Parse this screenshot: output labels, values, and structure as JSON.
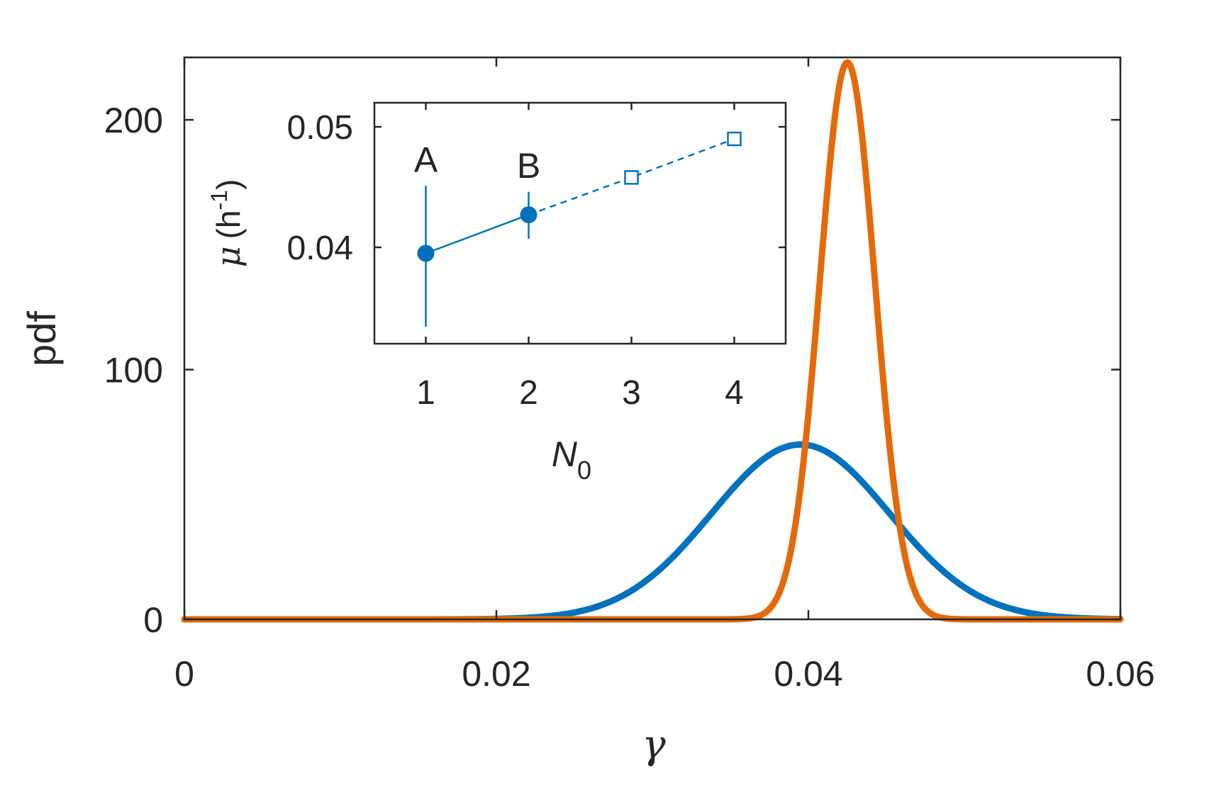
{
  "colors": {
    "blue": "#0072BD",
    "orange": "#E36A0A",
    "axis": "#262626"
  },
  "chart_data": [
    {
      "type": "line",
      "xlabel": "γ",
      "ylabel": "pdf",
      "xlim": [
        0,
        0.06
      ],
      "ylim": [
        0,
        225
      ],
      "xticks": [
        0,
        0.02,
        0.04,
        0.06
      ],
      "xtick_labels": [
        "0",
        "0.02",
        "0.04",
        "0.06"
      ],
      "yticks": [
        0,
        100,
        200
      ],
      "ytick_labels": [
        "0",
        "100",
        "200"
      ],
      "grid": false,
      "series": [
        {
          "color": "#0072BD",
          "distribution": "gaussian",
          "mean": 0.0395,
          "sd": 0.0057,
          "peak": 70
        },
        {
          "color": "#E36A0A",
          "distribution": "gaussian",
          "mean": 0.0425,
          "sd": 0.00177,
          "peak": 223
        }
      ]
    },
    {
      "type": "scatter",
      "xlabel": "N",
      "xlabel_subscript": "0",
      "ylabel_symbol": "μ",
      "ylabel_unit_open": "(h",
      "ylabel_unit_sup": "-1",
      "ylabel_unit_close": ")",
      "xlim": [
        0.5,
        4.5
      ],
      "ylim": [
        0.032,
        0.052
      ],
      "xticks": [
        1,
        2,
        3,
        4
      ],
      "xtick_labels": [
        "1",
        "2",
        "3",
        "4"
      ],
      "yticks": [
        0.04,
        0.05
      ],
      "ytick_labels": [
        "0.04",
        "0.05"
      ],
      "grid": false,
      "measured": {
        "x": [
          1,
          2
        ],
        "y": [
          0.0395,
          0.0427
        ],
        "err_low": [
          0.0334,
          0.0407
        ],
        "err_high": [
          0.0451,
          0.0446
        ],
        "labels": [
          "A",
          "B"
        ]
      },
      "predicted": {
        "x": [
          2,
          3,
          4
        ],
        "y": [
          0.0427,
          0.0458,
          0.049
        ]
      }
    }
  ]
}
